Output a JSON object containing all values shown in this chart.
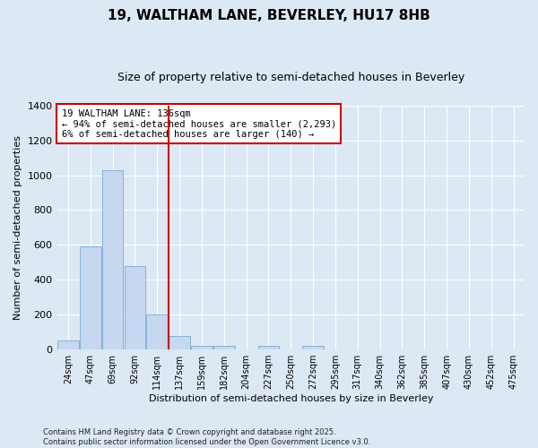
{
  "title_line1": "19, WALTHAM LANE, BEVERLEY, HU17 8HB",
  "title_line2": "Size of property relative to semi-detached houses in Beverley",
  "xlabel": "Distribution of semi-detached houses by size in Beverley",
  "ylabel": "Number of semi-detached properties",
  "bin_labels": [
    "24sqm",
    "47sqm",
    "69sqm",
    "92sqm",
    "114sqm",
    "137sqm",
    "159sqm",
    "182sqm",
    "204sqm",
    "227sqm",
    "250sqm",
    "272sqm",
    "295sqm",
    "317sqm",
    "340sqm",
    "362sqm",
    "385sqm",
    "407sqm",
    "430sqm",
    "452sqm",
    "475sqm"
  ],
  "values": [
    50,
    590,
    1030,
    480,
    200,
    75,
    20,
    20,
    0,
    20,
    0,
    20,
    0,
    0,
    0,
    0,
    0,
    0,
    0,
    0,
    0
  ],
  "bar_color": "#c5d8f0",
  "bar_edge_color": "#7aaad0",
  "vline_position": 5,
  "vline_color": "#cc0000",
  "annotation_text": "19 WALTHAM LANE: 136sqm\n← 94% of semi-detached houses are smaller (2,293)\n6% of semi-detached houses are larger (140) →",
  "annotation_box_color": "#ffffff",
  "annotation_box_edge": "#cc0000",
  "footer_text": "Contains HM Land Registry data © Crown copyright and database right 2025.\nContains public sector information licensed under the Open Government Licence v3.0.",
  "background_color": "#dde8f5",
  "plot_bg_color": "#dde8f5",
  "ylim": [
    0,
    1400
  ],
  "yticks": [
    0,
    200,
    400,
    600,
    800,
    1000,
    1200,
    1400
  ],
  "title_fontsize": 11,
  "subtitle_fontsize": 9
}
